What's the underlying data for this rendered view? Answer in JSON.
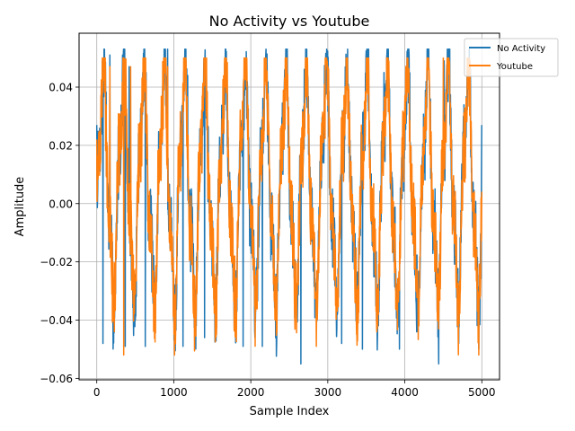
{
  "chart_data": {
    "type": "line",
    "title": "No Activity vs Youtube",
    "xlabel": "Sample Index",
    "ylabel": "Amplitude",
    "xlim": [
      -230,
      5230
    ],
    "ylim": [
      -0.0605,
      0.0585
    ],
    "xticks": [
      0,
      1000,
      2000,
      3000,
      4000,
      5000
    ],
    "xtick_labels": [
      "0",
      "1000",
      "2000",
      "3000",
      "4000",
      "5000"
    ],
    "yticks": [
      -0.06,
      -0.04,
      -0.02,
      0.0,
      0.02,
      0.04
    ],
    "ytick_labels": [
      "−0.06",
      "−0.04",
      "−0.02",
      "0.00",
      "0.02",
      "0.04"
    ],
    "grid": true,
    "legend_position": "top-right",
    "approx_cycles": 19,
    "series": [
      {
        "name": "No Activity",
        "color": "#1f77b4",
        "x_start": 0,
        "x_end": 4999,
        "approx_max": 0.053,
        "approx_min": -0.055,
        "envelope": [
          {
            "x": 0,
            "y": 0.027
          },
          {
            "x": 80,
            "y": -0.048
          },
          {
            "x": 170,
            "y": 0.051
          },
          {
            "x": 370,
            "y": -0.049
          },
          {
            "x": 420,
            "y": 0.047
          },
          {
            "x": 630,
            "y": -0.049
          },
          {
            "x": 920,
            "y": 0.053
          },
          {
            "x": 1120,
            "y": -0.049
          },
          {
            "x": 1180,
            "y": 0.044
          },
          {
            "x": 1400,
            "y": -0.046
          },
          {
            "x": 1680,
            "y": 0.047
          },
          {
            "x": 1900,
            "y": -0.049
          },
          {
            "x": 2150,
            "y": -0.049
          },
          {
            "x": 2440,
            "y": 0.046
          },
          {
            "x": 2650,
            "y": -0.055
          },
          {
            "x": 2970,
            "y": 0.047
          },
          {
            "x": 3180,
            "y": -0.048
          },
          {
            "x": 3450,
            "y": -0.05
          },
          {
            "x": 3730,
            "y": 0.045
          },
          {
            "x": 3930,
            "y": -0.05
          },
          {
            "x": 4440,
            "y": -0.055
          },
          {
            "x": 4510,
            "y": 0.049
          },
          {
            "x": 4700,
            "y": -0.048
          },
          {
            "x": 4960,
            "y": -0.05
          },
          {
            "x": 4999,
            "y": 0.027
          }
        ]
      },
      {
        "name": "Youtube",
        "color": "#ff7f0e",
        "x_start": 0,
        "x_end": 4999,
        "approx_max": 0.05,
        "approx_min": -0.052,
        "envelope": [
          {
            "x": 0,
            "y": 0.022
          },
          {
            "x": 170,
            "y": 0.047
          },
          {
            "x": 350,
            "y": -0.052
          },
          {
            "x": 440,
            "y": 0.047
          },
          {
            "x": 920,
            "y": 0.047
          },
          {
            "x": 1690,
            "y": 0.048
          },
          {
            "x": 2180,
            "y": 0.048
          },
          {
            "x": 2970,
            "y": 0.046
          },
          {
            "x": 4500,
            "y": 0.05
          },
          {
            "x": 4960,
            "y": -0.052
          }
        ]
      }
    ]
  }
}
